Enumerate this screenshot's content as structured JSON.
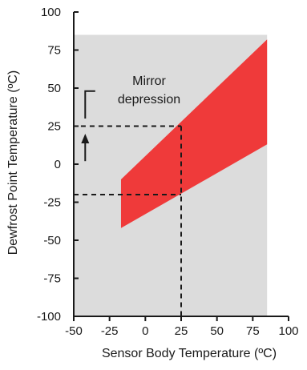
{
  "chart_data": {
    "type": "area",
    "xlabel": "Sensor Body Temperature (ºC)",
    "ylabel": "Dewfrost Point Temperature (ºC)",
    "xlim": [
      -50,
      100
    ],
    "ylim": [
      -100,
      100
    ],
    "x_ticks": [
      -50,
      -25,
      0,
      25,
      50,
      75,
      100
    ],
    "y_ticks": [
      -100,
      -75,
      -50,
      -25,
      0,
      25,
      50,
      75,
      100
    ],
    "x_tick_labels": [
      "-50",
      "-25",
      "0",
      "25",
      "50",
      "75",
      "100"
    ],
    "y_tick_labels": [
      "-100",
      "-75",
      "-50",
      "-25",
      "0",
      "25",
      "50",
      "75",
      "100"
    ],
    "operating_region": {
      "x": [
        -50,
        85
      ],
      "y": [
        -100,
        85
      ],
      "color": "#dcdcdc"
    },
    "band": {
      "color": "#ef3a3a",
      "x": [
        -17,
        85
      ],
      "upper": [
        -10,
        82
      ],
      "lower": [
        -42,
        13
      ]
    },
    "annotation": {
      "text_lines": [
        "Mirror",
        "depression"
      ],
      "sensor_temp": 25,
      "dewpoint_upper": 25,
      "dewpoint_lower": -20
    }
  }
}
